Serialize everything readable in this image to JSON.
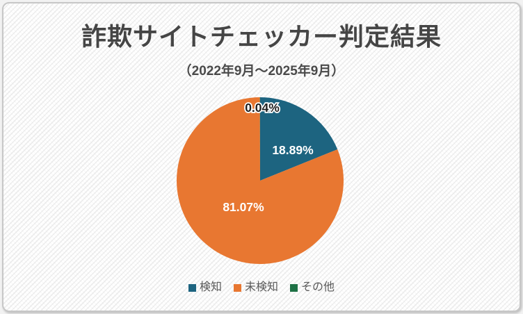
{
  "chart_data": {
    "type": "pie",
    "title": "詐欺サイトチェッカー判定結果",
    "subtitle": "（2022年9月～2025年9月）",
    "categories": [
      "検知",
      "未検知",
      "その他"
    ],
    "values": [
      18.89,
      81.07,
      0.04
    ],
    "data_labels": [
      "18.89%",
      "81.07%",
      "0.04%"
    ],
    "colors": [
      "#1d6480",
      "#e87731",
      "#1e7145"
    ],
    "start_angle_deg": 0,
    "direction": "clockwise",
    "legend_position": "bottom"
  },
  "colors": {
    "legend_text": "#595959",
    "title_text": "#454545",
    "label_light": "#ffffff",
    "label_dark": "#1f1f1f",
    "card_border": "#c7c7c7"
  }
}
